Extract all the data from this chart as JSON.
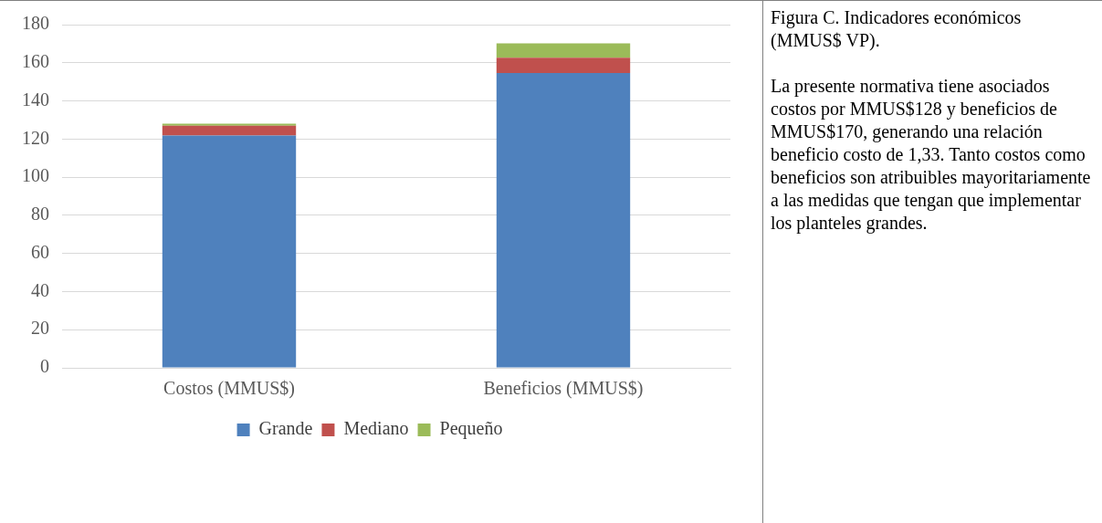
{
  "chart_data": {
    "type": "bar",
    "title": "Figura C. Indicadores económicos (MMUS$ VP).",
    "annotations": [
      "La presente normativa tiene asociados costos por MMUS$128 y beneficios de MMUS$170, generando una relación beneficio costo de 1,33. Tanto costos como beneficios son atribuibles mayoritariamente a las medidas que tengan que implementar los planteles grandes."
    ],
    "categories": [
      "Costos (MMUS$)",
      "Beneficios (MMUS$)"
    ],
    "stacked": true,
    "series": [
      {
        "name": "Grande",
        "color": "#4f81bd",
        "values": [
          121.8,
          154.6
        ]
      },
      {
        "name": "Mediano",
        "color": "#c0504d",
        "values": [
          5.2,
          8.1
        ]
      },
      {
        "name": "Pequeño",
        "color": "#9bbb59",
        "values": [
          1.0,
          7.5
        ]
      }
    ],
    "ylim": [
      0,
      180
    ],
    "yticks": [
      0,
      20,
      40,
      60,
      80,
      100,
      120,
      140,
      160,
      180
    ],
    "grid": "y",
    "legend": "bottom"
  }
}
